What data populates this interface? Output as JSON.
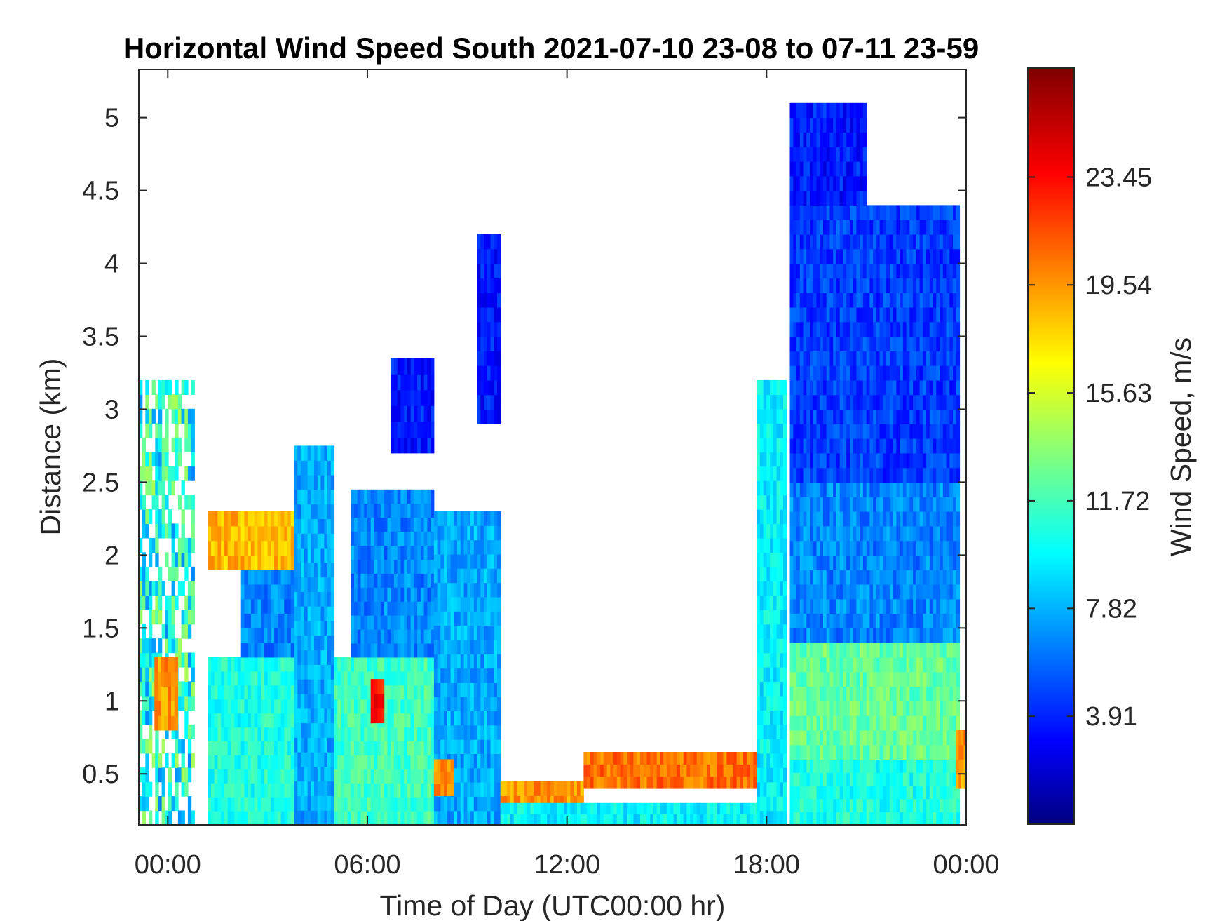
{
  "chart_data": {
    "type": "heatmap",
    "title": "Horizontal Wind Speed South 2021-07-10 23-08 to 07-11 23-59",
    "xlabel": "Time of Day (UTC00:00 hr)",
    "ylabel": "Distance (km)",
    "x_unit": "hours since 00:00 UTC 07-11",
    "xlim": [
      -0.87,
      24.0
    ],
    "ylim": [
      0.15,
      5.33
    ],
    "x_ticks": [
      {
        "value": 0,
        "label": "00:00"
      },
      {
        "value": 6,
        "label": "06:00"
      },
      {
        "value": 12,
        "label": "12:00"
      },
      {
        "value": 18,
        "label": "18:00"
      },
      {
        "value": 24,
        "label": "00:00"
      }
    ],
    "y_ticks": [
      {
        "value": 0.5,
        "label": "0.5"
      },
      {
        "value": 1,
        "label": "1"
      },
      {
        "value": 1.5,
        "label": "1.5"
      },
      {
        "value": 2,
        "label": "2"
      },
      {
        "value": 2.5,
        "label": "2.5"
      },
      {
        "value": 3,
        "label": "3"
      },
      {
        "value": 3.5,
        "label": "3.5"
      },
      {
        "value": 4,
        "label": "4"
      },
      {
        "value": 4.5,
        "label": "4.5"
      },
      {
        "value": 5,
        "label": "5"
      }
    ],
    "colorbar": {
      "label": "Wind Speed, m/s",
      "colormap": "jet",
      "range": [
        0,
        27.4
      ],
      "ticks": [
        3.91,
        7.82,
        11.72,
        15.63,
        19.54,
        23.45
      ],
      "tick_labels": [
        "3.91",
        "7.82",
        "11.72",
        "15.63",
        "19.54",
        "23.45"
      ]
    },
    "regions": [
      {
        "x": [
          -0.87,
          0.8
        ],
        "y": [
          0.15,
          3.2
        ],
        "speed": 11,
        "note": "sparse mixed"
      },
      {
        "x": [
          -0.4,
          0.3
        ],
        "y": [
          0.8,
          1.3
        ],
        "speed": 20
      },
      {
        "x": [
          1.2,
          4.0
        ],
        "y": [
          0.15,
          1.3
        ],
        "speed": 11
      },
      {
        "x": [
          2.2,
          4.0
        ],
        "y": [
          1.3,
          2.0
        ],
        "speed": 7
      },
      {
        "x": [
          1.2,
          3.8
        ],
        "y": [
          1.9,
          2.3
        ],
        "speed": 19
      },
      {
        "x": [
          3.8,
          5.0
        ],
        "y": [
          0.15,
          2.75
        ],
        "speed": 8
      },
      {
        "x": [
          5.0,
          8.0
        ],
        "y": [
          0.15,
          1.3
        ],
        "speed": 12
      },
      {
        "x": [
          5.5,
          8.0
        ],
        "y": [
          1.3,
          2.45
        ],
        "speed": 7
      },
      {
        "x": [
          6.1,
          6.5
        ],
        "y": [
          0.85,
          1.15
        ],
        "speed": 24
      },
      {
        "x": [
          6.7,
          8.0
        ],
        "y": [
          2.7,
          3.35
        ],
        "speed": 4
      },
      {
        "x": [
          8.0,
          10.0
        ],
        "y": [
          0.15,
          2.3
        ],
        "speed": 8
      },
      {
        "x": [
          8.0,
          8.6
        ],
        "y": [
          0.35,
          0.6
        ],
        "speed": 20
      },
      {
        "x": [
          9.3,
          10.0
        ],
        "y": [
          2.9,
          4.2
        ],
        "speed": 4
      },
      {
        "x": [
          10.0,
          12.5
        ],
        "y": [
          0.25,
          0.45
        ],
        "speed": 20
      },
      {
        "x": [
          12.5,
          17.7
        ],
        "y": [
          0.4,
          0.65
        ],
        "speed": 21
      },
      {
        "x": [
          10.0,
          17.7
        ],
        "y": [
          0.15,
          0.3
        ],
        "speed": 10
      },
      {
        "x": [
          17.7,
          18.6
        ],
        "y": [
          0.15,
          3.2
        ],
        "speed": 10
      },
      {
        "x": [
          18.7,
          23.8
        ],
        "y": [
          0.15,
          0.6
        ],
        "speed": 11
      },
      {
        "x": [
          18.7,
          23.8
        ],
        "y": [
          0.6,
          1.4
        ],
        "speed": 13
      },
      {
        "x": [
          18.7,
          23.8
        ],
        "y": [
          1.4,
          2.5
        ],
        "speed": 7
      },
      {
        "x": [
          18.7,
          23.8
        ],
        "y": [
          2.5,
          4.4
        ],
        "speed": 5
      },
      {
        "x": [
          18.7,
          21.0
        ],
        "y": [
          4.4,
          5.1
        ],
        "speed": 4
      },
      {
        "x": [
          23.7,
          24.0
        ],
        "y": [
          0.4,
          0.8
        ],
        "speed": 20
      }
    ]
  }
}
